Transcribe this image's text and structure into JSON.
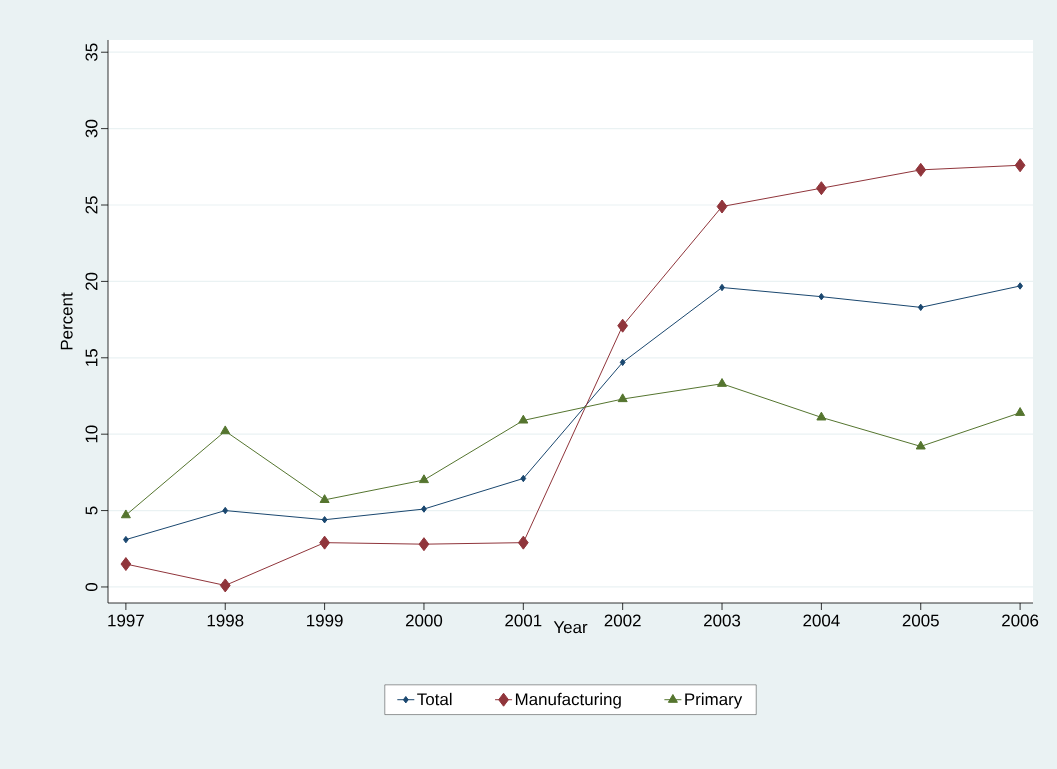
{
  "chart_data": {
    "type": "line",
    "xlabel": "Year",
    "ylabel": "Percent",
    "x": [
      1997,
      1998,
      1999,
      2000,
      2001,
      2002,
      2003,
      2004,
      2005,
      2006
    ],
    "series": [
      {
        "name": "Total",
        "color": "#1a476f",
        "marker": "diamond",
        "values": [
          3.1,
          5.0,
          4.4,
          5.1,
          7.1,
          14.7,
          19.6,
          19.0,
          18.3,
          19.7
        ]
      },
      {
        "name": "Manufacturing",
        "color": "#90353b",
        "marker": "diamond",
        "values": [
          1.5,
          0.1,
          2.9,
          2.8,
          2.9,
          17.1,
          24.9,
          26.1,
          27.3,
          27.6
        ]
      },
      {
        "name": "Primary",
        "color": "#55752f",
        "marker": "triangle",
        "values": [
          4.7,
          10.2,
          5.7,
          7.0,
          10.9,
          12.3,
          13.3,
          11.1,
          9.2,
          11.4
        ]
      }
    ],
    "xlim": [
      1996.82,
      2006.13
    ],
    "ylim": [
      -1.05,
      35.8
    ],
    "xticks": [
      1997,
      1998,
      1999,
      2000,
      2001,
      2002,
      2003,
      2004,
      2005,
      2006
    ],
    "yticks": [
      0,
      5,
      10,
      15,
      20,
      25,
      30,
      35
    ],
    "grid": "y",
    "legend": "bottom",
    "line_style": "solid"
  }
}
